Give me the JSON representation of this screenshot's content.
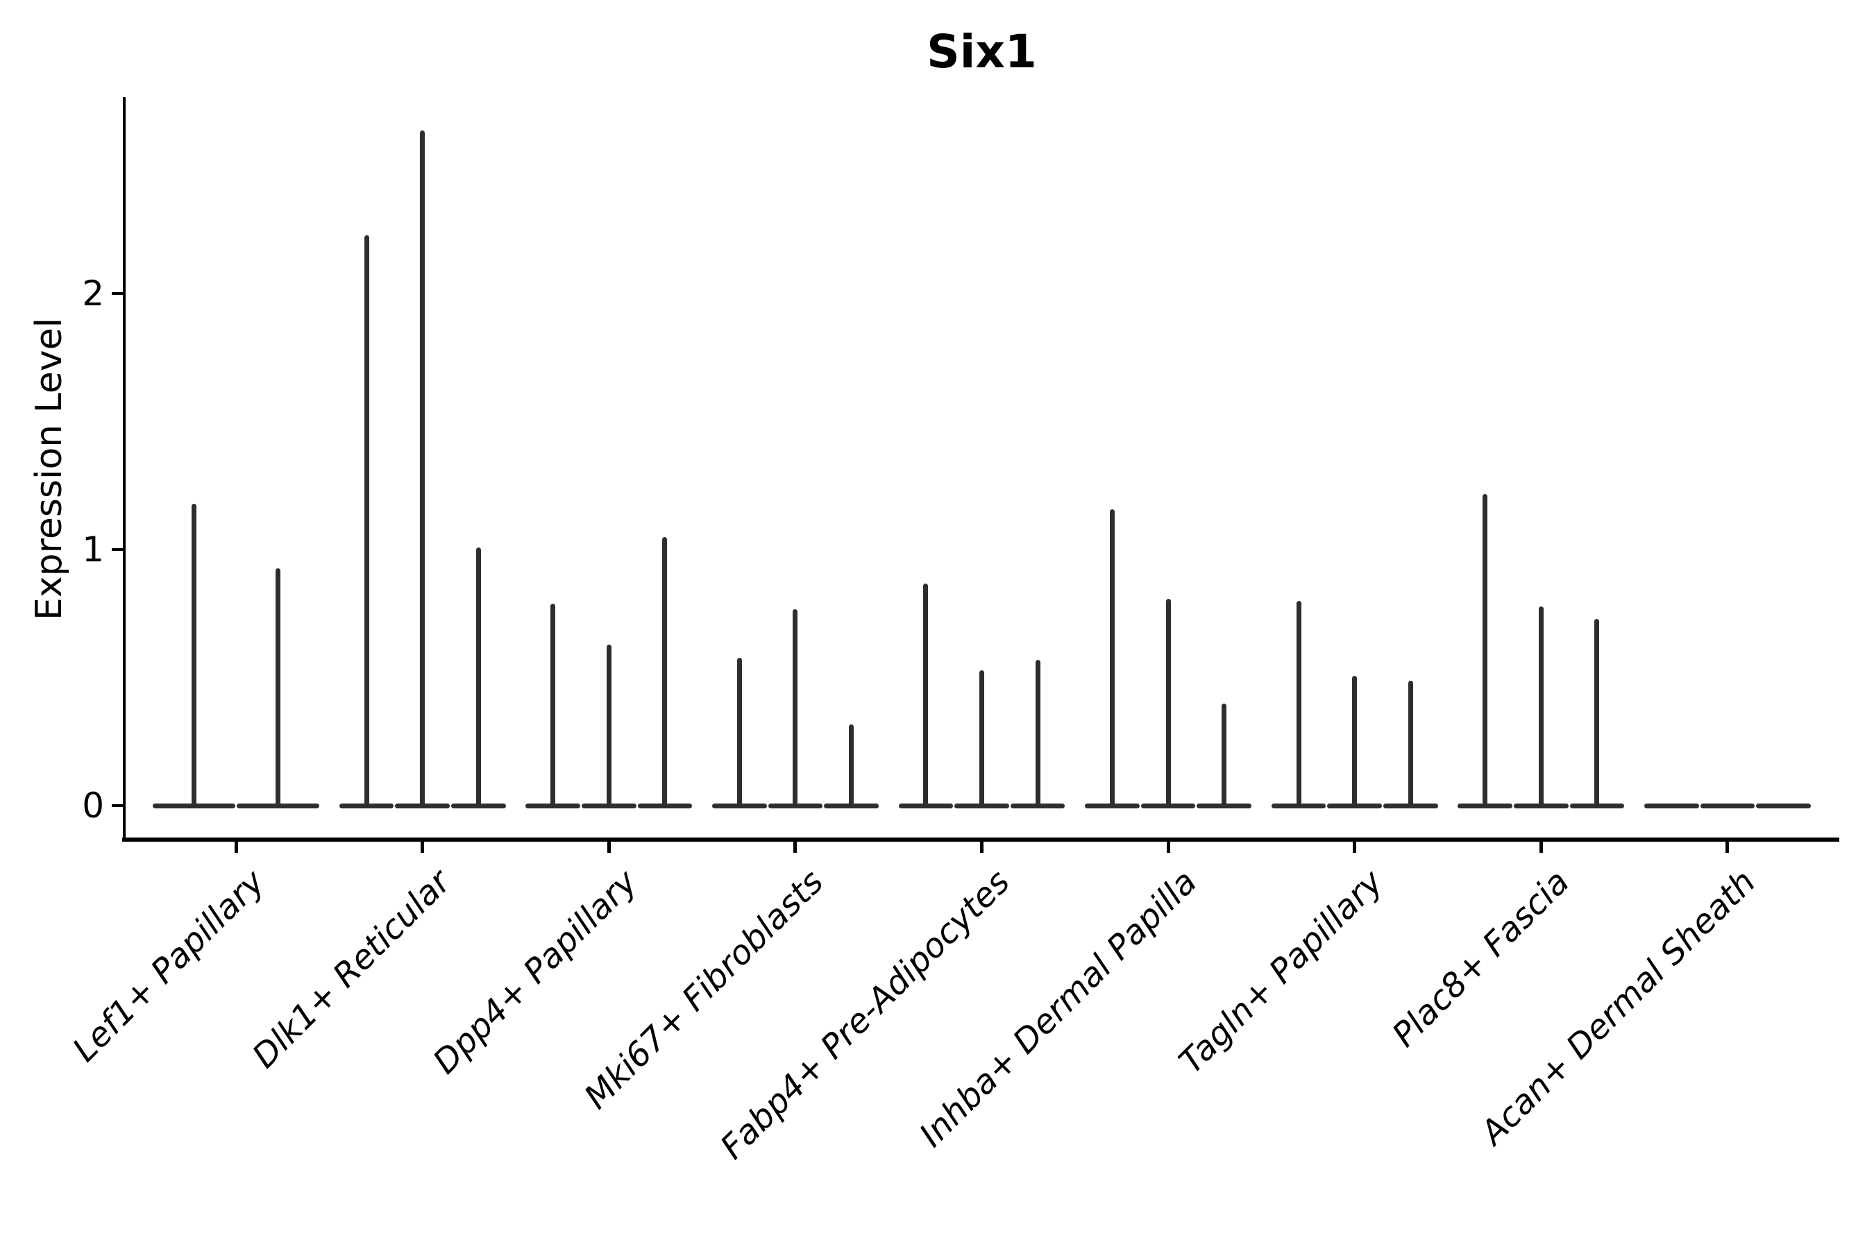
{
  "chart_data": {
    "type": "violin",
    "title": "Six1",
    "ylabel": "Expression Level",
    "xlabel": "",
    "yticks": [
      0,
      1,
      2
    ],
    "ylim": [
      0,
      2.77
    ],
    "grid": false,
    "legend_position": "none",
    "background_color": "#ffffff",
    "violin_color": "#2e2e2e",
    "axis_color": "#000000",
    "categories": [
      "Lef1+ Papillary",
      "Dlk1+ Reticular",
      "Dpp4+ Papillary",
      "Mki67+ Fibroblasts",
      "Fabp4+ Pre-Adipocytes",
      "Inhba+ Dermal Papilla",
      "Tagln+ Papillary",
      "Plac8+ Fascia",
      "Acan+ Dermal Sheath"
    ],
    "groups": [
      {
        "category": "Lef1+ Papillary",
        "violin_max_expression": [
          1.17,
          0.92
        ]
      },
      {
        "category": "Dlk1+ Reticular",
        "violin_max_expression": [
          2.22,
          2.63,
          1.0
        ]
      },
      {
        "category": "Dpp4+ Papillary",
        "violin_max_expression": [
          0.78,
          0.62,
          1.04
        ]
      },
      {
        "category": "Mki67+ Fibroblasts",
        "violin_max_expression": [
          0.57,
          0.76,
          0.31
        ]
      },
      {
        "category": "Fabp4+ Pre-Adipocytes",
        "violin_max_expression": [
          0.86,
          0.52,
          0.56
        ]
      },
      {
        "category": "Inhba+ Dermal Papilla",
        "violin_max_expression": [
          1.15,
          0.8,
          0.39
        ]
      },
      {
        "category": "Tagln+ Papillary",
        "violin_max_expression": [
          0.79,
          0.5,
          0.48
        ]
      },
      {
        "category": "Plac8+ Fascia",
        "violin_max_expression": [
          1.21,
          0.77,
          0.72
        ]
      },
      {
        "category": "Acan+ Dermal Sheath",
        "violin_max_expression": [
          0,
          0,
          0
        ]
      }
    ]
  }
}
